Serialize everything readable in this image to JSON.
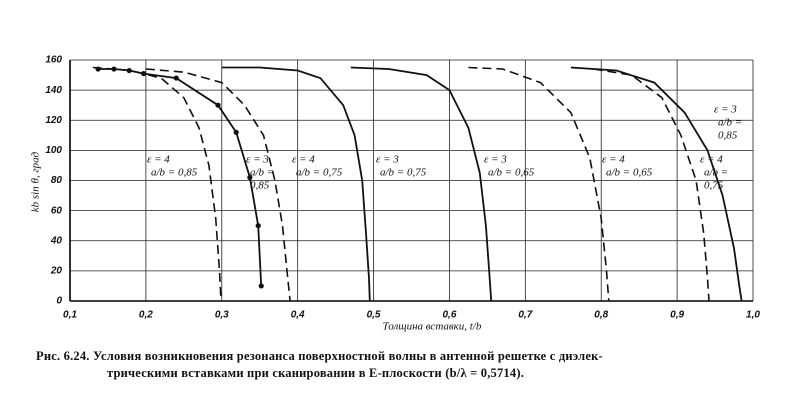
{
  "chart_data": {
    "type": "line",
    "xlabel": "Толщина вставки, t/b",
    "ylabel": "kb sin θ, град",
    "caption": [
      "Рис. 6.24. Условия возникновения резонанса поверхностной волны в антенной решетке с диэлек-",
      "трическими вставками при сканировании в E-плоскости (b/λ = 0,5714)."
    ],
    "xlim": [
      0.1,
      1.0
    ],
    "ylim": [
      0,
      160
    ],
    "xticks": [
      {
        "value": 0.1,
        "label": "0,1"
      },
      {
        "value": 0.2,
        "label": "0,2"
      },
      {
        "value": 0.3,
        "label": "0,3"
      },
      {
        "value": 0.4,
        "label": "0,4"
      },
      {
        "value": 0.5,
        "label": "0,5"
      },
      {
        "value": 0.6,
        "label": "0,6"
      },
      {
        "value": 0.7,
        "label": "0,7"
      },
      {
        "value": 0.8,
        "label": "0,8"
      },
      {
        "value": 0.9,
        "label": "0,9"
      },
      {
        "value": 1.0,
        "label": "1,0"
      }
    ],
    "yticks": [
      0,
      20,
      40,
      60,
      80,
      100,
      120,
      140,
      160
    ],
    "grid": true,
    "series": [
      {
        "labels": [
          "ε = 4",
          "a/b = 0,85"
        ],
        "color": "#111111",
        "dashed": true,
        "markers": false,
        "x": [
          0.13,
          0.18,
          0.22,
          0.25,
          0.27,
          0.283,
          0.292,
          0.297,
          0.299
        ],
        "values": [
          155,
          153,
          148,
          135,
          115,
          90,
          55,
          20,
          0
        ]
      },
      {
        "labels": [
          "ε = 3",
          "a/b =",
          "0,85"
        ],
        "color": "#111111",
        "dashed": false,
        "markers": true,
        "x": [
          0.137,
          0.158,
          0.178,
          0.197,
          0.24,
          0.295,
          0.319,
          0.337,
          0.348,
          0.352
        ],
        "values": [
          154,
          154,
          153,
          151,
          148,
          130,
          112,
          82,
          50,
          10
        ]
      },
      {
        "labels": [
          "ε = 4",
          "a/b = 0,75"
        ],
        "color": "#111111",
        "dashed": true,
        "markers": false,
        "x": [
          0.2,
          0.25,
          0.3,
          0.33,
          0.355,
          0.37,
          0.38,
          0.386,
          0.39
        ],
        "values": [
          154,
          152,
          145,
          130,
          110,
          80,
          50,
          20,
          0
        ]
      },
      {
        "labels": [
          "ε = 3",
          "a/b = 0,75"
        ],
        "color": "#111111",
        "dashed": false,
        "markers": false,
        "x": [
          0.3,
          0.35,
          0.4,
          0.43,
          0.46,
          0.475,
          0.485,
          0.49,
          0.494,
          0.495
        ],
        "values": [
          155,
          155,
          153,
          148,
          130,
          110,
          80,
          45,
          15,
          0
        ]
      },
      {
        "labels": [
          "ε = 3",
          "a/b = 0,65"
        ],
        "color": "#111111",
        "dashed": false,
        "markers": false,
        "x": [
          0.47,
          0.52,
          0.57,
          0.6,
          0.625,
          0.64,
          0.648,
          0.653,
          0.655
        ],
        "values": [
          155,
          154,
          150,
          140,
          115,
          85,
          50,
          15,
          0
        ]
      },
      {
        "labels": [
          "ε = 4",
          "a/b = 0,65"
        ],
        "color": "#111111",
        "dashed": true,
        "markers": false,
        "x": [
          0.625,
          0.67,
          0.72,
          0.76,
          0.785,
          0.8,
          0.807,
          0.81
        ],
        "values": [
          155,
          154,
          145,
          125,
          95,
          55,
          20,
          0
        ]
      },
      {
        "labels": [
          "ε = 3",
          "a/b =",
          "0,85"
        ],
        "color": "#111111",
        "dashed": false,
        "markers": false,
        "x": [
          0.76,
          0.82,
          0.87,
          0.91,
          0.94,
          0.96,
          0.975,
          0.982,
          0.985
        ],
        "values": [
          155,
          153,
          145,
          125,
          100,
          70,
          35,
          10,
          0
        ]
      },
      {
        "labels": [
          "ε = 4",
          "a/b =",
          "0,75"
        ],
        "color": "#111111",
        "dashed": true,
        "markers": false,
        "x": [
          0.79,
          0.84,
          0.88,
          0.905,
          0.925,
          0.935,
          0.94,
          0.942
        ],
        "values": [
          154,
          150,
          135,
          110,
          80,
          45,
          15,
          0
        ]
      }
    ]
  }
}
